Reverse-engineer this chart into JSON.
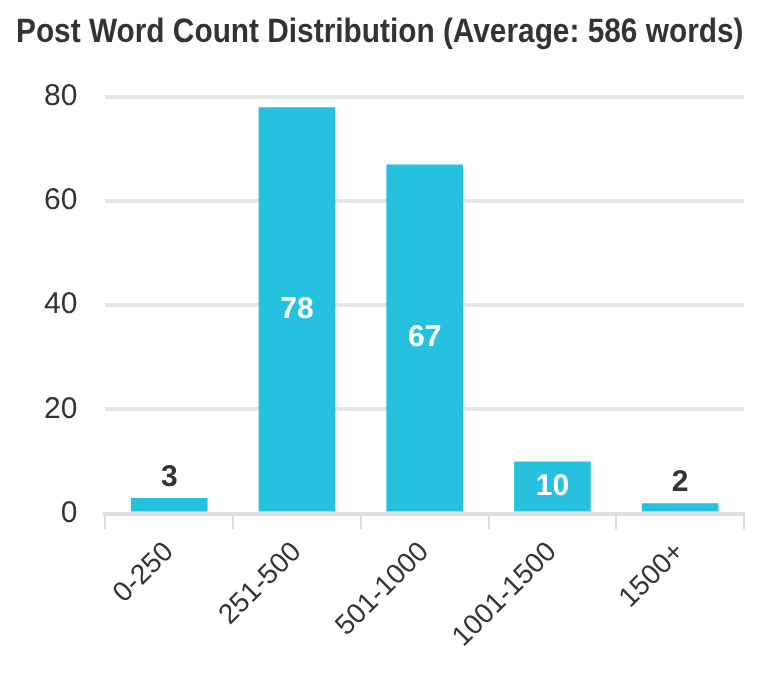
{
  "chart_data": {
    "type": "bar",
    "title": "Post Word Count Distribution (Average: 586 words)",
    "categories": [
      "0-250",
      "251-500",
      "501-1000",
      "1001-1500",
      "1500+"
    ],
    "values": [
      3,
      78,
      67,
      10,
      2
    ],
    "color": "#26c1df",
    "ylim": [
      0,
      80
    ],
    "yticks": [
      0,
      20,
      40,
      60,
      80
    ],
    "grid": "y",
    "data_labels": true,
    "legend": false
  }
}
